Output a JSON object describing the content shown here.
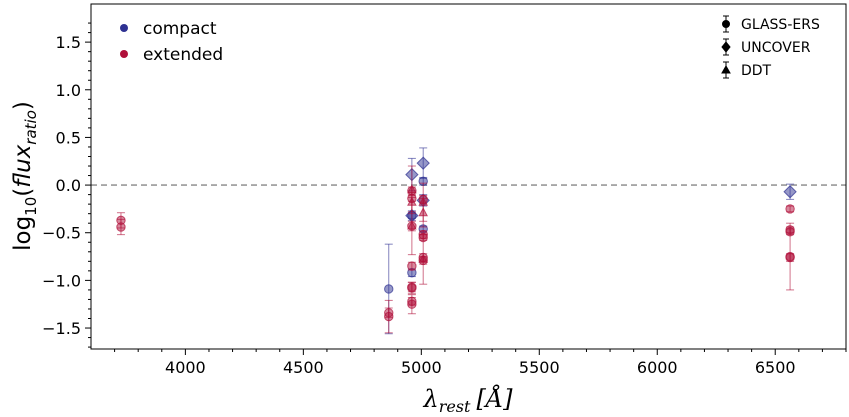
{
  "chart_data": {
    "type": "scatter",
    "xlabel": {
      "symbol": "λ",
      "sub": "rest",
      "unit": "[Å]"
    },
    "ylabel": {
      "prefix": "log",
      "base": "10",
      "open": "(",
      "var": "flux",
      "sub": "ratio",
      "close": ")"
    },
    "xlim": [
      3600,
      6800
    ],
    "ylim": [
      -1.72,
      1.9
    ],
    "xticks": [
      4000,
      4500,
      5000,
      5500,
      6000,
      6500
    ],
    "xtick_labels": [
      "4000",
      "4500",
      "5000",
      "5500",
      "6000",
      "6500"
    ],
    "yticks": [
      -1.5,
      -1.0,
      -0.5,
      0.0,
      0.5,
      1.0,
      1.5
    ],
    "ytick_labels": [
      "−1.5",
      "−1.0",
      "−0.5",
      "0.0",
      "0.5",
      "1.0",
      "1.5"
    ],
    "reference_line": {
      "y": 0,
      "style": "dashed",
      "color": "#999999"
    },
    "colors": {
      "compact": "#2e3192",
      "extended": "#b0103a"
    },
    "legend_color": [
      {
        "label": "compact",
        "key": "compact"
      },
      {
        "label": "extended",
        "key": "extended"
      }
    ],
    "legend_marker": [
      {
        "label": "GLASS-ERS",
        "marker": "circle"
      },
      {
        "label": "UNCOVER",
        "marker": "diamond"
      },
      {
        "label": "DDT",
        "marker": "triangle"
      }
    ],
    "points": [
      {
        "x": 3727,
        "y": -0.37,
        "err": 0.08,
        "group": "extended",
        "survey": "GLASS-ERS"
      },
      {
        "x": 3727,
        "y": -0.44,
        "err": 0.08,
        "group": "extended",
        "survey": "GLASS-ERS"
      },
      {
        "x": 4862,
        "y": -1.09,
        "err": 0.47,
        "group": "compact",
        "survey": "GLASS-ERS"
      },
      {
        "x": 4862,
        "y": -1.34,
        "err": 0.05,
        "group": "extended",
        "survey": "GLASS-ERS"
      },
      {
        "x": 4862,
        "y": -1.38,
        "err": 0.17,
        "group": "extended",
        "survey": "GLASS-ERS"
      },
      {
        "x": 4960,
        "y": 0.11,
        "err": 0.17,
        "group": "compact",
        "survey": "UNCOVER"
      },
      {
        "x": 4960,
        "y": -0.32,
        "err": 0.05,
        "group": "compact",
        "survey": "UNCOVER"
      },
      {
        "x": 4960,
        "y": -0.32,
        "err": 0.03,
        "group": "compact",
        "survey": "GLASS-ERS"
      },
      {
        "x": 4960,
        "y": -0.92,
        "err": 0.04,
        "group": "compact",
        "survey": "GLASS-ERS"
      },
      {
        "x": 4960,
        "y": -0.06,
        "err": 0.04,
        "group": "extended",
        "survey": "GLASS-ERS"
      },
      {
        "x": 4960,
        "y": -0.14,
        "err": 0.03,
        "group": "extended",
        "survey": "GLASS-ERS"
      },
      {
        "x": 4960,
        "y": -0.43,
        "err": 0.05,
        "group": "extended",
        "survey": "GLASS-ERS"
      },
      {
        "x": 4960,
        "y": -0.85,
        "err": 0.04,
        "group": "extended",
        "survey": "GLASS-ERS"
      },
      {
        "x": 4960,
        "y": -1.07,
        "err": 0.05,
        "group": "extended",
        "survey": "GLASS-ERS"
      },
      {
        "x": 4960,
        "y": -1.08,
        "err": 0.06,
        "group": "extended",
        "survey": "GLASS-ERS"
      },
      {
        "x": 4960,
        "y": -1.22,
        "err": 0.04,
        "group": "extended",
        "survey": "GLASS-ERS"
      },
      {
        "x": 4960,
        "y": -1.25,
        "err": 0.1,
        "group": "extended",
        "survey": "GLASS-ERS"
      },
      {
        "x": 4960,
        "y": -0.05,
        "err": 0.25,
        "group": "extended",
        "survey": "DDT"
      },
      {
        "x": 4960,
        "y": -0.18,
        "err": 0.1,
        "group": "extended",
        "survey": "DDT"
      },
      {
        "x": 4960,
        "y": -0.43,
        "err": 0.3,
        "group": "extended",
        "survey": "DDT"
      },
      {
        "x": 5008,
        "y": 0.23,
        "err": 0.16,
        "group": "compact",
        "survey": "UNCOVER"
      },
      {
        "x": 5008,
        "y": -0.16,
        "err": 0.06,
        "group": "compact",
        "survey": "UNCOVER"
      },
      {
        "x": 5008,
        "y": 0.04,
        "err": 0.04,
        "group": "compact",
        "survey": "GLASS-ERS"
      },
      {
        "x": 5008,
        "y": -0.46,
        "err": 0.03,
        "group": "compact",
        "survey": "GLASS-ERS"
      },
      {
        "x": 5008,
        "y": -0.15,
        "err": 0.04,
        "group": "extended",
        "survey": "GLASS-ERS"
      },
      {
        "x": 5008,
        "y": -0.52,
        "err": 0.04,
        "group": "extended",
        "survey": "GLASS-ERS"
      },
      {
        "x": 5008,
        "y": -0.55,
        "err": 0.03,
        "group": "extended",
        "survey": "GLASS-ERS"
      },
      {
        "x": 5008,
        "y": -0.76,
        "err": 0.04,
        "group": "extended",
        "survey": "GLASS-ERS"
      },
      {
        "x": 5008,
        "y": -0.79,
        "err": 0.04,
        "group": "extended",
        "survey": "GLASS-ERS"
      },
      {
        "x": 5008,
        "y": -0.18,
        "err": 0.2,
        "group": "extended",
        "survey": "DDT"
      },
      {
        "x": 5008,
        "y": -0.29,
        "err": 0.15,
        "group": "extended",
        "survey": "DDT"
      },
      {
        "x": 5008,
        "y": -0.78,
        "err": 0.26,
        "group": "extended",
        "survey": "DDT"
      },
      {
        "x": 6563,
        "y": -0.07,
        "err": 0.08,
        "group": "compact",
        "survey": "UNCOVER"
      },
      {
        "x": 6563,
        "y": -0.25,
        "err": 0.03,
        "group": "extended",
        "survey": "GLASS-ERS"
      },
      {
        "x": 6563,
        "y": -0.47,
        "err": 0.03,
        "group": "extended",
        "survey": "GLASS-ERS"
      },
      {
        "x": 6563,
        "y": -0.49,
        "err": 0.03,
        "group": "extended",
        "survey": "GLASS-ERS"
      },
      {
        "x": 6563,
        "y": -0.75,
        "err": 0.35,
        "group": "extended",
        "survey": "GLASS-ERS"
      },
      {
        "x": 6563,
        "y": -0.76,
        "err": 0.04,
        "group": "extended",
        "survey": "GLASS-ERS"
      }
    ]
  }
}
